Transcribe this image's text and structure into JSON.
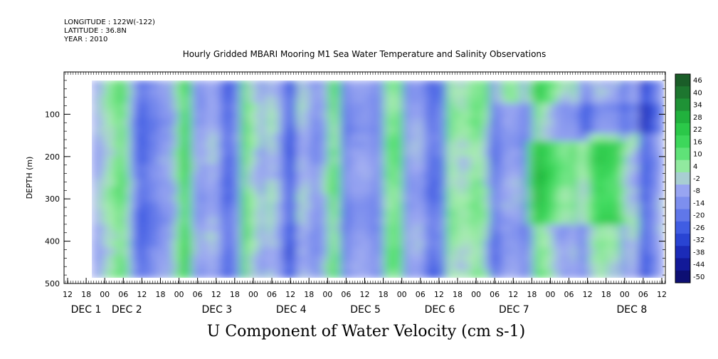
{
  "meta": {
    "longitude": "LONGITUDE : 122W(-122)",
    "latitude": "LATITUDE : 36.8N",
    "year": "YEAR : 2010"
  },
  "chart_data": {
    "type": "heatmap",
    "title": "Hourly Gridded MBARI Mooring M1 Sea Water Temperature and Salinity Observations",
    "xlabel": "U Component of Water Velocity (cm s-1)",
    "ylabel": "DEPTH (m)",
    "ylim": [
      500,
      0
    ],
    "yticks": [
      100,
      200,
      300,
      400,
      500
    ],
    "data_depth_range": [
      20,
      485
    ],
    "xtick_hours": [
      "12",
      "18",
      "00",
      "06",
      "12",
      "18",
      "00",
      "06",
      "12",
      "18",
      "00",
      "06",
      "12",
      "18",
      "00",
      "06",
      "12",
      "18",
      "00",
      "06",
      "12",
      "18",
      "00",
      "06",
      "12",
      "18",
      "00",
      "06",
      "12",
      "18",
      "00",
      "06",
      "12"
    ],
    "date_labels": [
      "DEC 1",
      "DEC 2",
      "DEC 3",
      "DEC 4",
      "DEC 5",
      "DEC 6",
      "DEC 7",
      "DEC 8"
    ],
    "colorbar_labels": [
      "46",
      "40",
      "34",
      "28",
      "22",
      "16",
      "10",
      "4",
      "-2",
      "-8",
      "-14",
      "-20",
      "-26",
      "-32",
      "-38",
      "-44",
      "-50"
    ],
    "colorbar_range": [
      -50,
      52
    ],
    "colors": {
      "strong_positive": "#1e5a2a",
      "positive": "#22c040",
      "weak_positive": "#9ef0a8",
      "weak_negative": "#a0b0f0",
      "negative": "#3050e0",
      "strong_negative": "#0a0a60"
    }
  }
}
